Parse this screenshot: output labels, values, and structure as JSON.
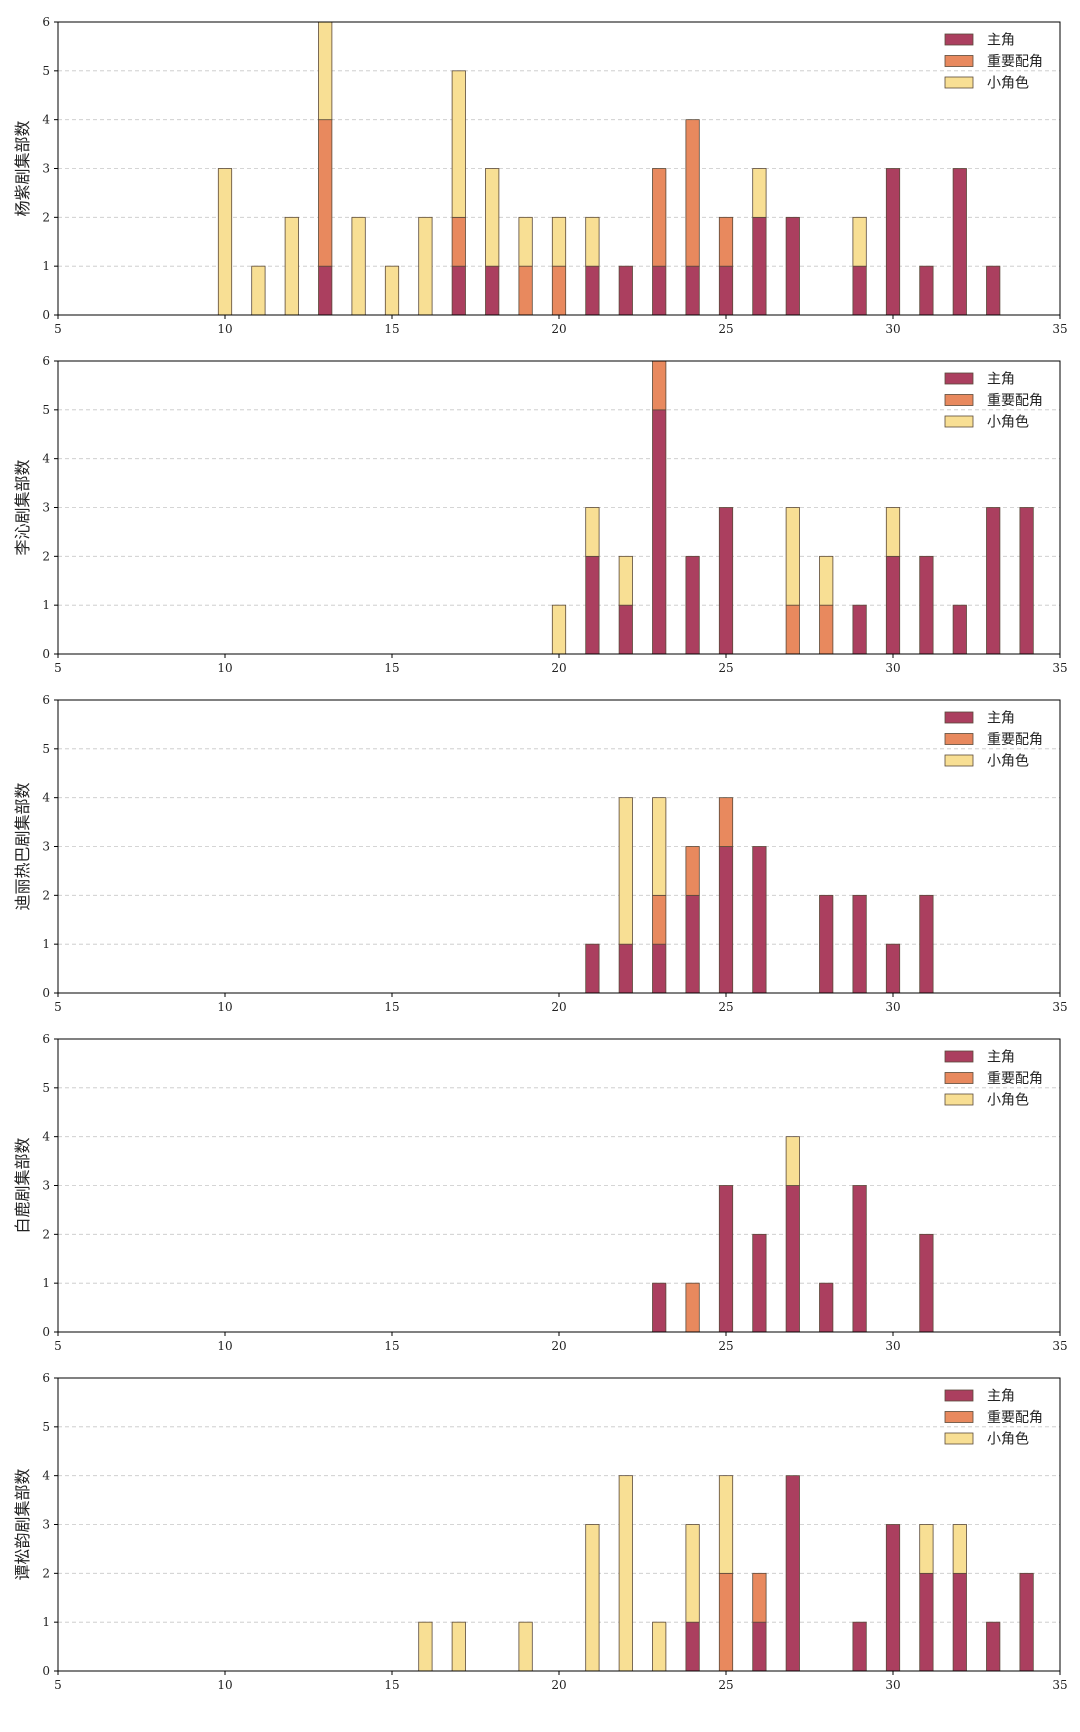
{
  "chart_data": [
    {
      "type": "bar",
      "stacked": true,
      "x": [
        10,
        11,
        12,
        13,
        14,
        15,
        16,
        17,
        18,
        19,
        20,
        21,
        22,
        23,
        24,
        25,
        26,
        27,
        29,
        30,
        31,
        32,
        33
      ],
      "series": [
        {
          "name": "主角",
          "color": "#ab3f5f",
          "values": [
            0,
            0,
            0,
            1,
            0,
            0,
            0,
            1,
            1,
            0,
            0,
            1,
            1,
            1,
            1,
            1,
            2,
            2,
            1,
            3,
            1,
            3,
            1
          ]
        },
        {
          "name": "重要配角",
          "color": "#e8895e",
          "values": [
            0,
            0,
            0,
            3,
            0,
            0,
            0,
            1,
            0,
            1,
            1,
            0,
            0,
            2,
            3,
            1,
            0,
            0,
            0,
            0,
            0,
            0,
            0
          ]
        },
        {
          "name": "小角色",
          "color": "#f8df94",
          "values": [
            3,
            1,
            2,
            2,
            2,
            1,
            2,
            3,
            2,
            1,
            1,
            1,
            0,
            0,
            0,
            0,
            1,
            0,
            1,
            0,
            0,
            0,
            0
          ]
        }
      ],
      "xlim": [
        5,
        35
      ],
      "ylim": [
        0,
        6
      ],
      "xticks": [
        "5",
        "10",
        "15",
        "20",
        "25",
        "30",
        "35"
      ],
      "yticks": [
        "0",
        "1",
        "2",
        "3",
        "4",
        "5",
        "6"
      ],
      "ylabel": "杨紫剧集部数",
      "grid": "y-dashed",
      "legend": "top-right"
    },
    {
      "type": "bar",
      "stacked": true,
      "x": [
        20,
        21,
        22,
        23,
        24,
        25,
        27,
        28,
        29,
        30,
        31,
        32,
        33,
        34
      ],
      "series": [
        {
          "name": "主角",
          "color": "#ab3f5f",
          "values": [
            0,
            2,
            1,
            5,
            2,
            3,
            0,
            0,
            1,
            2,
            2,
            1,
            3,
            3
          ]
        },
        {
          "name": "重要配角",
          "color": "#e8895e",
          "values": [
            0,
            0,
            0,
            1,
            0,
            0,
            1,
            1,
            0,
            0,
            0,
            0,
            0,
            0
          ]
        },
        {
          "name": "小角色",
          "color": "#f8df94",
          "values": [
            1,
            1,
            1,
            0,
            0,
            0,
            2,
            1,
            0,
            1,
            0,
            0,
            0,
            0
          ]
        }
      ],
      "xlim": [
        5,
        35
      ],
      "ylim": [
        0,
        6
      ],
      "xticks": [
        "5",
        "10",
        "15",
        "20",
        "25",
        "30",
        "35"
      ],
      "yticks": [
        "0",
        "1",
        "2",
        "3",
        "4",
        "5",
        "6"
      ],
      "ylabel": "李沁剧集部数",
      "grid": "y-dashed",
      "legend": "top-right"
    },
    {
      "type": "bar",
      "stacked": true,
      "x": [
        21,
        22,
        23,
        24,
        25,
        26,
        28,
        29,
        30,
        31
      ],
      "series": [
        {
          "name": "主角",
          "color": "#ab3f5f",
          "values": [
            1,
            1,
            1,
            2,
            3,
            3,
            2,
            2,
            1,
            2
          ]
        },
        {
          "name": "重要配角",
          "color": "#e8895e",
          "values": [
            0,
            0,
            1,
            1,
            1,
            0,
            0,
            0,
            0,
            0
          ]
        },
        {
          "name": "小角色",
          "color": "#f8df94",
          "values": [
            0,
            3,
            2,
            0,
            0,
            0,
            0,
            0,
            0,
            0
          ]
        }
      ],
      "xlim": [
        5,
        35
      ],
      "ylim": [
        0,
        6
      ],
      "xticks": [
        "5",
        "10",
        "15",
        "20",
        "25",
        "30",
        "35"
      ],
      "yticks": [
        "0",
        "1",
        "2",
        "3",
        "4",
        "5",
        "6"
      ],
      "ylabel": "迪丽热巴剧集部数",
      "grid": "y-dashed",
      "legend": "top-right"
    },
    {
      "type": "bar",
      "stacked": true,
      "x": [
        23,
        24,
        25,
        26,
        27,
        28,
        29,
        31
      ],
      "series": [
        {
          "name": "主角",
          "color": "#ab3f5f",
          "values": [
            1,
            0,
            3,
            2,
            3,
            1,
            3,
            2
          ]
        },
        {
          "name": "重要配角",
          "color": "#e8895e",
          "values": [
            0,
            1,
            0,
            0,
            0,
            0,
            0,
            0
          ]
        },
        {
          "name": "小角色",
          "color": "#f8df94",
          "values": [
            0,
            0,
            0,
            0,
            1,
            0,
            0,
            0
          ]
        }
      ],
      "xlim": [
        5,
        35
      ],
      "ylim": [
        0,
        6
      ],
      "xticks": [
        "5",
        "10",
        "15",
        "20",
        "25",
        "30",
        "35"
      ],
      "yticks": [
        "0",
        "1",
        "2",
        "3",
        "4",
        "5",
        "6"
      ],
      "ylabel": "白鹿剧集部数",
      "grid": "y-dashed",
      "legend": "top-right"
    },
    {
      "type": "bar",
      "stacked": true,
      "x": [
        16,
        17,
        19,
        21,
        22,
        23,
        24,
        25,
        26,
        27,
        29,
        30,
        31,
        32,
        33,
        34
      ],
      "series": [
        {
          "name": "主角",
          "color": "#ab3f5f",
          "values": [
            0,
            0,
            0,
            0,
            0,
            0,
            1,
            0,
            1,
            4,
            1,
            3,
            2,
            2,
            1,
            2
          ]
        },
        {
          "name": "重要配角",
          "color": "#e8895e",
          "values": [
            0,
            0,
            0,
            0,
            0,
            0,
            0,
            2,
            1,
            0,
            0,
            0,
            0,
            0,
            0,
            0
          ]
        },
        {
          "name": "小角色",
          "color": "#f8df94",
          "values": [
            1,
            1,
            1,
            3,
            4,
            1,
            2,
            2,
            0,
            0,
            0,
            0,
            1,
            1,
            0,
            0
          ]
        }
      ],
      "xlim": [
        5,
        35
      ],
      "ylim": [
        0,
        6
      ],
      "xticks": [
        "5",
        "10",
        "15",
        "20",
        "25",
        "30",
        "35"
      ],
      "yticks": [
        "0",
        "1",
        "2",
        "3",
        "4",
        "5",
        "6"
      ],
      "ylabel": "谭松韵剧集部数",
      "grid": "y-dashed",
      "legend": "top-right"
    }
  ]
}
